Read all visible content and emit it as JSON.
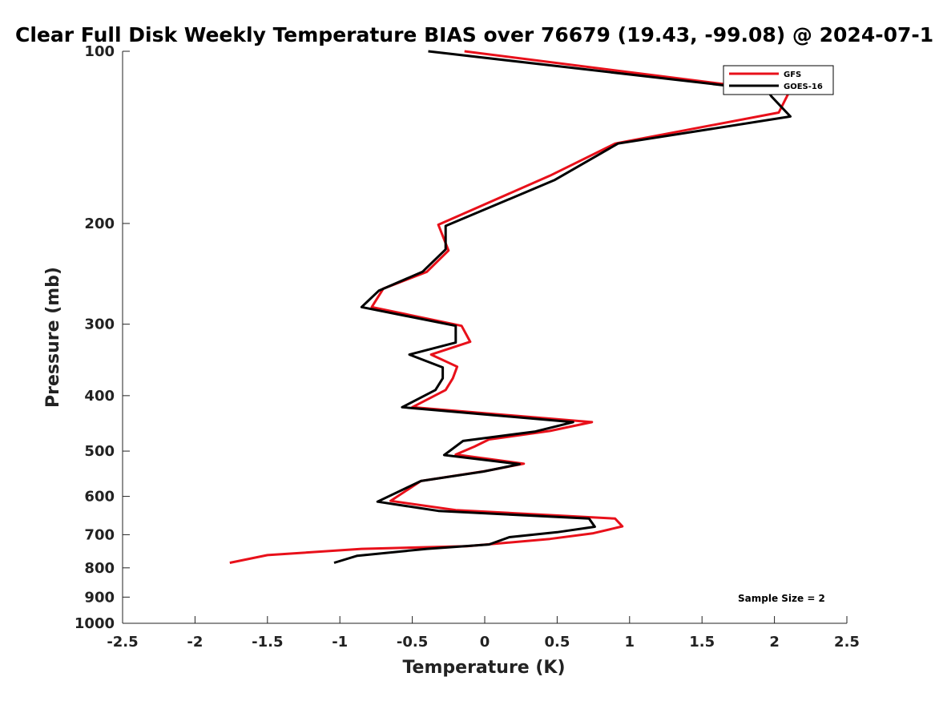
{
  "chart_data": {
    "type": "line",
    "title": "Clear Full Disk Weekly Temperature BIAS over 76679 (19.43, -99.08) @ 2024-07-1",
    "xlabel": "Temperature (K)",
    "ylabel": "Pressure (mb)",
    "xlim": [
      -2.5,
      2.5
    ],
    "ylim": [
      1000,
      100
    ],
    "y_scale": "log",
    "y_reversed": true,
    "x_ticks": [
      -2.5,
      -2,
      -1.5,
      -1,
      -0.5,
      0,
      0.5,
      1,
      1.5,
      2,
      2.5
    ],
    "x_tick_labels": [
      "-2.5",
      "-2",
      "-1.5",
      "-1",
      "-0.5",
      "0",
      "0.5",
      "1",
      "1.5",
      "2",
      "2.5"
    ],
    "y_ticks": [
      100,
      200,
      300,
      400,
      500,
      600,
      700,
      800,
      900,
      1000
    ],
    "y_tick_labels": [
      "100",
      "200",
      "300",
      "400",
      "500",
      "600",
      "700",
      "800",
      "900",
      "1000"
    ],
    "grid": false,
    "legend_position": "top-right",
    "annotation": "Sample Size = 2",
    "series": [
      {
        "name": "GFS",
        "color": "#e8101a",
        "x": [
          -0.14,
          2.1,
          2.03,
          0.9,
          0.45,
          -0.32,
          -0.25,
          -0.4,
          -0.7,
          -0.78,
          -0.16,
          -0.1,
          -0.37,
          -0.19,
          -0.22,
          -0.27,
          -0.5,
          0.74,
          0.45,
          0.03,
          -0.07,
          -0.2,
          0.27,
          0.0,
          -0.44,
          -0.65,
          -0.2,
          0.9,
          0.95,
          0.75,
          0.45,
          0.1,
          -0.12,
          -0.85,
          -1.5,
          -1.76
        ],
        "y": [
          100,
          118,
          128,
          145,
          165,
          201,
          223,
          243,
          260,
          280,
          302,
          322,
          339,
          356,
          373,
          391,
          419,
          445,
          461,
          477,
          491,
          507,
          526,
          542,
          564,
          611,
          634,
          656,
          677,
          696,
          712,
          725,
          733,
          741,
          760,
          784
        ]
      },
      {
        "name": "GOES-16",
        "color": "#000000",
        "x": [
          -0.39,
          1.95,
          1.98,
          2.11,
          0.92,
          0.48,
          -0.27,
          -0.27,
          -0.43,
          -0.73,
          -0.85,
          -0.2,
          -0.2,
          -0.52,
          -0.29,
          -0.29,
          -0.34,
          -0.57,
          0.61,
          0.35,
          -0.15,
          -0.28,
          0.24,
          -0.01,
          -0.44,
          -0.74,
          -0.32,
          0.72,
          0.76,
          0.5,
          0.17,
          0.03,
          -0.4,
          -0.88,
          -1.04
        ],
        "y": [
          100,
          117,
          120,
          130,
          145,
          168,
          202,
          222,
          243,
          262,
          280,
          302,
          323,
          339,
          357,
          373,
          391,
          419,
          445,
          462,
          480,
          508,
          527,
          543,
          564,
          613,
          636,
          656,
          678,
          693,
          707,
          728,
          741,
          762,
          784
        ]
      }
    ]
  }
}
